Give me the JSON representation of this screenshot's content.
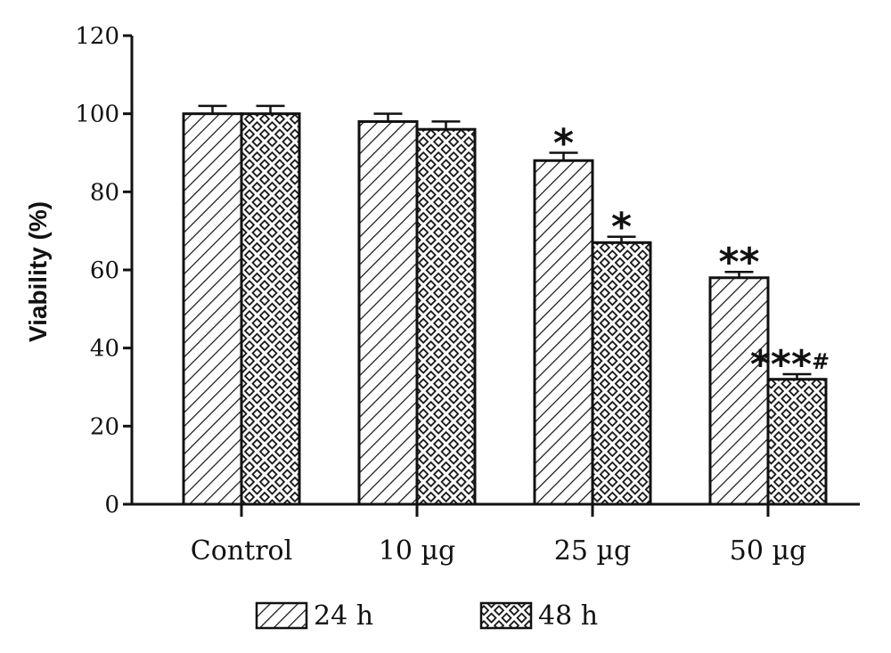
{
  "chart_data": {
    "type": "bar",
    "title": "",
    "xlabel": "",
    "ylabel": "Viability (%)",
    "ylim": [
      0,
      120
    ],
    "yticks": [
      0,
      20,
      40,
      60,
      80,
      100,
      120
    ],
    "grid": false,
    "legend_position": "bottom-center",
    "categories": [
      "Control",
      "10 µg",
      "25 µg",
      "50 µg"
    ],
    "series": [
      {
        "name": "24 h",
        "pattern": "diagonal-hatch",
        "values": [
          100,
          98,
          88,
          58
        ],
        "errors": [
          2,
          2,
          2,
          1.5
        ],
        "annotations": [
          "",
          "",
          "*",
          "**"
        ]
      },
      {
        "name": "48 h",
        "pattern": "crosshatch",
        "values": [
          100,
          96,
          67,
          32
        ],
        "errors": [
          2,
          2,
          1.5,
          1.3
        ],
        "annotations": [
          "",
          "",
          "*",
          "***#"
        ]
      }
    ],
    "colors": {
      "stroke": "#111111",
      "fill": "#ffffff"
    }
  }
}
